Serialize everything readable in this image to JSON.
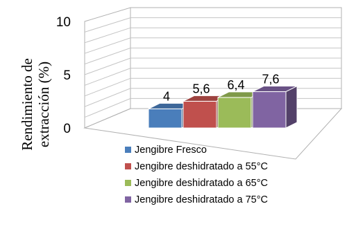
{
  "chart_data": {
    "type": "bar",
    "style": "3d-column",
    "categories": [
      "Jengibre Fresco",
      "Jengibre deshidratado a 55°C",
      "Jengibre deshidratado a 65°C",
      "Jengibre deshidratado a 75°C"
    ],
    "values": [
      4,
      5.6,
      6.4,
      7.6
    ],
    "data_labels": [
      "4",
      "5,6",
      "6,4",
      "7,6"
    ],
    "colors": [
      "#4a7ebb",
      "#c0504d",
      "#9bbb59",
      "#8064a2"
    ],
    "ylabel_line1": "Rendimiento de",
    "ylabel_line2": "extracción (%)",
    "ylim": [
      0,
      10
    ],
    "y_ticks": [
      0,
      5,
      10
    ],
    "y_tick_labels": [
      "0",
      "5",
      "10"
    ],
    "grid": true,
    "legend_position": "bottom"
  }
}
